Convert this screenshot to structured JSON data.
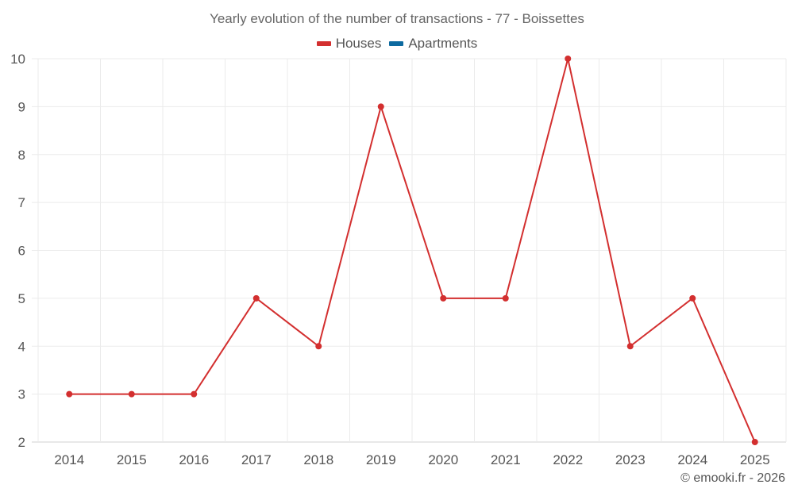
{
  "chart_data": {
    "type": "line",
    "title": "Yearly evolution of the number of transactions - 77 - Boissettes",
    "xlabel": "",
    "ylabel": "",
    "categories": [
      "2014",
      "2015",
      "2016",
      "2017",
      "2018",
      "2019",
      "2020",
      "2021",
      "2022",
      "2023",
      "2024",
      "2025"
    ],
    "series": [
      {
        "name": "Houses",
        "color": "#d32f2f",
        "values": [
          3,
          3,
          3,
          5,
          4,
          9,
          5,
          5,
          10,
          4,
          5,
          2
        ]
      },
      {
        "name": "Apartments",
        "color": "#0d6aa0",
        "values": []
      }
    ],
    "ylim": [
      2,
      10
    ],
    "yticks": [
      2,
      3,
      4,
      5,
      6,
      7,
      8,
      9,
      10
    ],
    "grid": true,
    "legend_position": "top"
  },
  "credit": "© emooki.fr - 2026"
}
